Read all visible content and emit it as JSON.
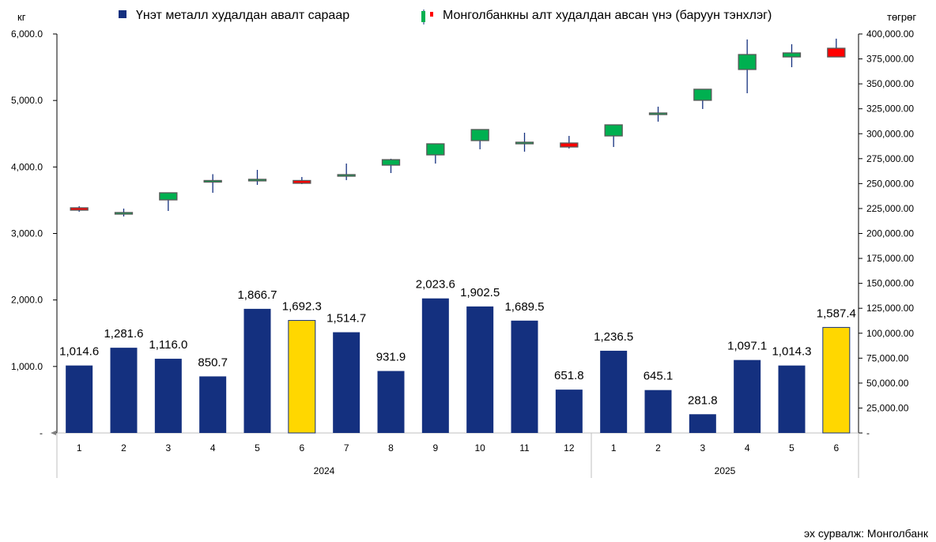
{
  "chart_data": {
    "type": "bar+candlestick",
    "legend": {
      "placement": "top",
      "items": [
        "Үнэт металл худалдан авалт сараар",
        "Монголбанкны алт худалдан авсан үнэ (баруун тэнхлэг)"
      ]
    },
    "left_axis": {
      "unit": "кг",
      "range": [
        0,
        6000
      ],
      "ticks": [
        "-",
        "1,000.0",
        "2,000.0",
        "3,000.0",
        "4,000.0",
        "5,000.0",
        "6,000.0"
      ]
    },
    "right_axis": {
      "unit": "төгрөг",
      "range": [
        0,
        400000
      ],
      "ticks": [
        "-",
        "25,000.00",
        "50,000.00",
        "75,000.00",
        "100,000.00",
        "125,000.00",
        "150,000.00",
        "175,000.00",
        "200,000.00",
        "225,000.00",
        "250,000.00",
        "275,000.00",
        "300,000.00",
        "325,000.00",
        "350,000.00",
        "375,000.00",
        "400,000.00"
      ]
    },
    "years": [
      {
        "label": "2024",
        "months": 12
      },
      {
        "label": "2025",
        "months": 6
      }
    ],
    "categories": [
      "1",
      "2",
      "3",
      "4",
      "5",
      "6",
      "7",
      "8",
      "9",
      "10",
      "11",
      "12",
      "1",
      "2",
      "3",
      "4",
      "5",
      "6"
    ],
    "bars": {
      "values": [
        1014.6,
        1281.6,
        1116.0,
        850.7,
        1866.7,
        1692.3,
        1514.7,
        931.9,
        2023.6,
        1902.5,
        1689.5,
        651.8,
        1236.5,
        645.1,
        281.8,
        1097.1,
        1014.3,
        1587.4
      ],
      "labels": [
        "1,014.6",
        "1,281.6",
        "1,116.0",
        "850.7",
        "1,866.7",
        "1,692.3",
        "1,514.7",
        "931.9",
        "2,023.6",
        "1,902.5",
        "1,689.5",
        "651.8",
        "1,236.5",
        "645.1",
        "281.8",
        "1,097.1",
        "1,014.3",
        "1,587.4"
      ],
      "highlight_indices": [
        5,
        17
      ]
    },
    "candles": [
      {
        "o": 225750,
        "c": 223370,
        "h": 227330,
        "l": 221790
      },
      {
        "o": 219400,
        "c": 221000,
        "h": 224950,
        "l": 217030
      },
      {
        "o": 233670,
        "c": 240800,
        "h": 240800,
        "l": 222580
      },
      {
        "o": 252300,
        "c": 253100,
        "h": 259440,
        "l": 240800
      },
      {
        "o": 253500,
        "c": 254300,
        "h": 263770,
        "l": 248700
      },
      {
        "o": 253100,
        "c": 250300,
        "h": 256600,
        "l": 249500
      },
      {
        "o": 258200,
        "c": 259000,
        "h": 270100,
        "l": 253500
      },
      {
        "o": 268500,
        "c": 274000,
        "h": 274900,
        "l": 260600
      },
      {
        "o": 278800,
        "c": 289900,
        "h": 289900,
        "l": 270100
      },
      {
        "o": 293100,
        "c": 304200,
        "h": 304200,
        "l": 284400
      },
      {
        "o": 289900,
        "c": 291500,
        "h": 301000,
        "l": 282000
      },
      {
        "o": 290700,
        "c": 286700,
        "h": 297800,
        "l": 285200
      },
      {
        "o": 297800,
        "c": 308900,
        "h": 308900,
        "l": 286700
      },
      {
        "o": 319200,
        "c": 320800,
        "h": 327100,
        "l": 312100
      },
      {
        "o": 333500,
        "c": 344600,
        "h": 344600,
        "l": 324800
      },
      {
        "o": 364400,
        "c": 379400,
        "h": 394500,
        "l": 340600
      },
      {
        "o": 377000,
        "c": 381000,
        "h": 389700,
        "l": 366700
      },
      {
        "o": 385700,
        "c": 377000,
        "h": 395300,
        "l": 377000
      }
    ],
    "colors": {
      "bar": "#14307F",
      "highlight": "#FFD700",
      "up": "#00B050",
      "down": "#FF0000",
      "wick": "#14307F",
      "candle_border": "#595959"
    }
  },
  "source": "эх сурвалж: Монголбанк"
}
